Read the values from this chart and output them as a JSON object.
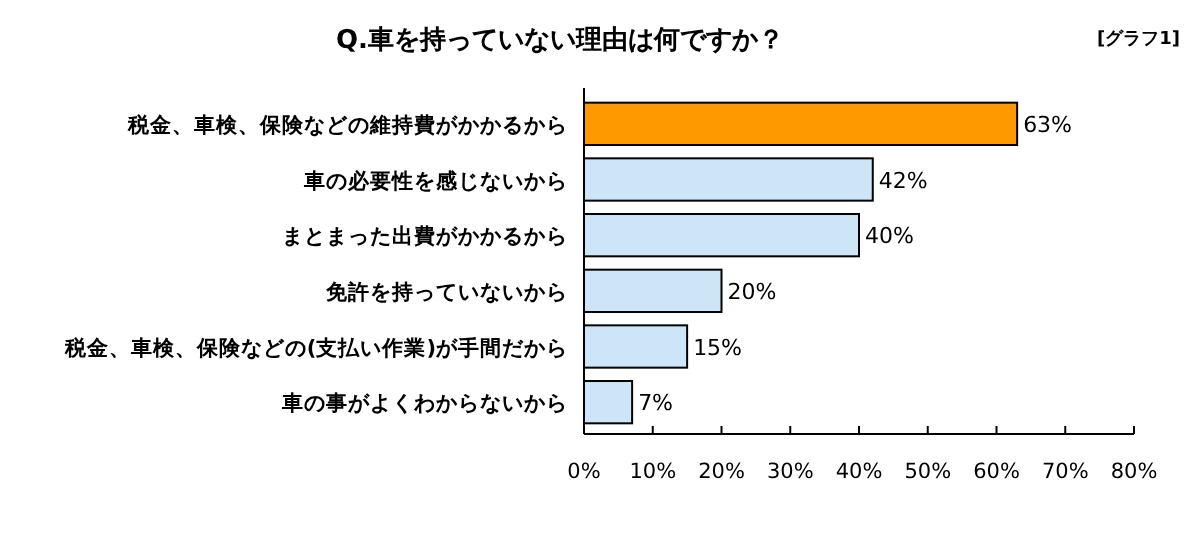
{
  "chart_data": {
    "type": "bar",
    "orientation": "horizontal",
    "title": "Q.車を持っていない理由は何ですか？",
    "annotations": [
      "[グラフ1]"
    ],
    "categories": [
      "税金、車検、保険などの維持費がかかるから",
      "車の必要性を感じないから",
      "まとまった出費がかかるから",
      "免許を持っていないから",
      "税金、車検、保険などの(支払い作業)が手間だから",
      "車の事がよくわからないから"
    ],
    "values": [
      63,
      42,
      40,
      20,
      15,
      7
    ],
    "colors": [
      "#ff9900",
      "#cce6f7",
      "#cce6f7",
      "#cce6f7",
      "#cce6f7",
      "#cce6f7"
    ],
    "value_labels": [
      "63%",
      "42%",
      "40%",
      "20%",
      "15%",
      "7%"
    ],
    "xlim": [
      0,
      80
    ],
    "xticks": [
      {
        "value": 0,
        "label": "0%"
      },
      {
        "value": 10,
        "label": "10%"
      },
      {
        "value": 20,
        "label": "20%"
      },
      {
        "value": 30,
        "label": "30%"
      },
      {
        "value": 40,
        "label": "40%"
      },
      {
        "value": 50,
        "label": "50%"
      },
      {
        "value": 60,
        "label": "60%"
      },
      {
        "value": 70,
        "label": "70%"
      },
      {
        "value": 80,
        "label": "80%"
      }
    ],
    "grid": false
  }
}
